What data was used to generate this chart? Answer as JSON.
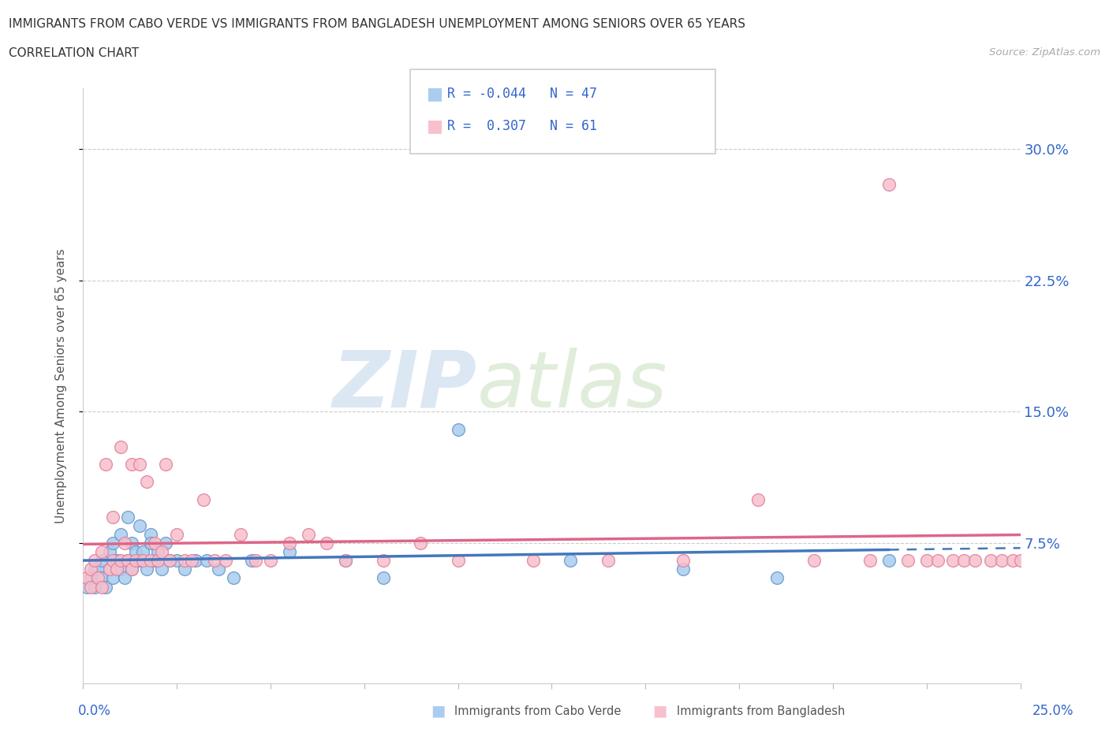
{
  "title_line1": "IMMIGRANTS FROM CABO VERDE VS IMMIGRANTS FROM BANGLADESH UNEMPLOYMENT AMONG SENIORS OVER 65 YEARS",
  "title_line2": "CORRELATION CHART",
  "source": "Source: ZipAtlas.com",
  "ylabel": "Unemployment Among Seniors over 65 years",
  "ytick_labels": [
    "7.5%",
    "15.0%",
    "22.5%",
    "30.0%"
  ],
  "ytick_values": [
    0.075,
    0.15,
    0.225,
    0.3
  ],
  "xlim": [
    0.0,
    0.25
  ],
  "ylim": [
    -0.005,
    0.335
  ],
  "legend_text1": "R = -0.044   N = 47",
  "legend_text2": "R =  0.307   N = 61",
  "color_cv_fill": "#aaccee",
  "color_cv_edge": "#6699cc",
  "color_bd_fill": "#f8c0cc",
  "color_bd_edge": "#e080a0",
  "color_cv_line": "#4477bb",
  "color_bd_line": "#dd6688",
  "watermark_zip": "ZIP",
  "watermark_atlas": "atlas",
  "cabo_verde_x": [
    0.001,
    0.002,
    0.003,
    0.003,
    0.004,
    0.005,
    0.005,
    0.006,
    0.007,
    0.007,
    0.008,
    0.008,
    0.009,
    0.01,
    0.01,
    0.011,
    0.012,
    0.012,
    0.013,
    0.013,
    0.014,
    0.015,
    0.015,
    0.016,
    0.017,
    0.018,
    0.018,
    0.019,
    0.02,
    0.021,
    0.022,
    0.023,
    0.025,
    0.027,
    0.03,
    0.033,
    0.036,
    0.04,
    0.045,
    0.055,
    0.07,
    0.08,
    0.1,
    0.13,
    0.16,
    0.185,
    0.215
  ],
  "cabo_verde_y": [
    0.05,
    0.055,
    0.05,
    0.06,
    0.06,
    0.055,
    0.065,
    0.05,
    0.06,
    0.07,
    0.055,
    0.075,
    0.065,
    0.06,
    0.08,
    0.055,
    0.065,
    0.09,
    0.06,
    0.075,
    0.07,
    0.065,
    0.085,
    0.07,
    0.06,
    0.08,
    0.075,
    0.065,
    0.07,
    0.06,
    0.075,
    0.065,
    0.065,
    0.06,
    0.065,
    0.065,
    0.06,
    0.055,
    0.065,
    0.07,
    0.065,
    0.055,
    0.14,
    0.065,
    0.06,
    0.055,
    0.065
  ],
  "bangladesh_x": [
    0.001,
    0.002,
    0.002,
    0.003,
    0.004,
    0.005,
    0.005,
    0.006,
    0.007,
    0.008,
    0.008,
    0.009,
    0.01,
    0.01,
    0.011,
    0.012,
    0.013,
    0.013,
    0.014,
    0.015,
    0.016,
    0.017,
    0.018,
    0.019,
    0.02,
    0.021,
    0.022,
    0.023,
    0.025,
    0.027,
    0.029,
    0.032,
    0.035,
    0.038,
    0.042,
    0.046,
    0.05,
    0.055,
    0.06,
    0.065,
    0.07,
    0.08,
    0.09,
    0.1,
    0.12,
    0.14,
    0.16,
    0.18,
    0.195,
    0.21,
    0.215,
    0.22,
    0.225,
    0.228,
    0.232,
    0.235,
    0.238,
    0.242,
    0.245,
    0.248,
    0.25
  ],
  "bangladesh_y": [
    0.055,
    0.05,
    0.06,
    0.065,
    0.055,
    0.07,
    0.05,
    0.12,
    0.06,
    0.065,
    0.09,
    0.06,
    0.13,
    0.065,
    0.075,
    0.065,
    0.12,
    0.06,
    0.065,
    0.12,
    0.065,
    0.11,
    0.065,
    0.075,
    0.065,
    0.07,
    0.12,
    0.065,
    0.08,
    0.065,
    0.065,
    0.1,
    0.065,
    0.065,
    0.08,
    0.065,
    0.065,
    0.075,
    0.08,
    0.075,
    0.065,
    0.065,
    0.075,
    0.065,
    0.065,
    0.065,
    0.065,
    0.1,
    0.065,
    0.065,
    0.28,
    0.065,
    0.065,
    0.065,
    0.065,
    0.065,
    0.065,
    0.065,
    0.065,
    0.065,
    0.065
  ]
}
